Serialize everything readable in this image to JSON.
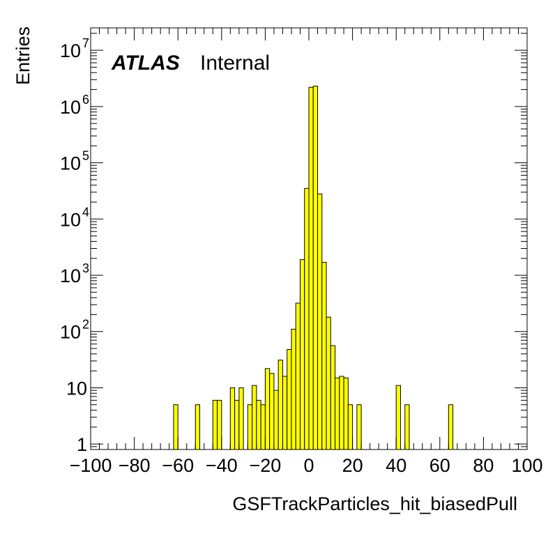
{
  "chart_data": {
    "type": "bar",
    "style": "step-histogram",
    "fill_color": "#ffff00",
    "line_color": "#000000",
    "xlabel": "GSFTrackParticles_hit_biasedPull",
    "ylabel": "Entries",
    "xlim": [
      -100,
      100
    ],
    "ylim": [
      0.8,
      25000000
    ],
    "y_scale": "log",
    "x_ticks": [
      -100,
      -80,
      -60,
      -40,
      -20,
      0,
      20,
      40,
      60,
      80,
      100
    ],
    "x_tick_labels": [
      "−100",
      "−80",
      "−60",
      "−40",
      "−20",
      "0",
      "20",
      "40",
      "60",
      "80",
      "100"
    ],
    "y_ticks": [
      1,
      10,
      100,
      1000,
      10000,
      100000,
      1000000,
      10000000
    ],
    "y_tick_labels": [
      {
        "base": "1",
        "exp": ""
      },
      {
        "base": "10",
        "exp": ""
      },
      {
        "base": "10",
        "exp": "2"
      },
      {
        "base": "10",
        "exp": "3"
      },
      {
        "base": "10",
        "exp": "4"
      },
      {
        "base": "10",
        "exp": "5"
      },
      {
        "base": "10",
        "exp": "6"
      },
      {
        "base": "10",
        "exp": "7"
      }
    ],
    "bin_width": 2,
    "bins": [
      {
        "x": -62,
        "y": 5
      },
      {
        "x": -52,
        "y": 5
      },
      {
        "x": -44,
        "y": 6
      },
      {
        "x": -42,
        "y": 6
      },
      {
        "x": -36,
        "y": 10
      },
      {
        "x": -34,
        "y": 6
      },
      {
        "x": -32,
        "y": 10
      },
      {
        "x": -28,
        "y": 5
      },
      {
        "x": -26,
        "y": 11
      },
      {
        "x": -24,
        "y": 6
      },
      {
        "x": -22,
        "y": 5
      },
      {
        "x": -20,
        "y": 22
      },
      {
        "x": -18,
        "y": 18
      },
      {
        "x": -16,
        "y": 9
      },
      {
        "x": -14,
        "y": 31
      },
      {
        "x": -12,
        "y": 16
      },
      {
        "x": -10,
        "y": 48
      },
      {
        "x": -8,
        "y": 110
      },
      {
        "x": -6,
        "y": 320
      },
      {
        "x": -4,
        "y": 1900
      },
      {
        "x": -2,
        "y": 35000
      },
      {
        "x": 0,
        "y": 2200000
      },
      {
        "x": 2,
        "y": 2300000
      },
      {
        "x": 4,
        "y": 28000
      },
      {
        "x": 6,
        "y": 1700
      },
      {
        "x": 8,
        "y": 180
      },
      {
        "x": 10,
        "y": 56
      },
      {
        "x": 12,
        "y": 15
      },
      {
        "x": 14,
        "y": 16
      },
      {
        "x": 16,
        "y": 15
      },
      {
        "x": 18,
        "y": 5
      },
      {
        "x": 22,
        "y": 5
      },
      {
        "x": 40,
        "y": 11
      },
      {
        "x": 44,
        "y": 5
      },
      {
        "x": 64,
        "y": 5
      }
    ]
  },
  "annotation": {
    "experiment": "ATLAS",
    "status": "Internal"
  }
}
